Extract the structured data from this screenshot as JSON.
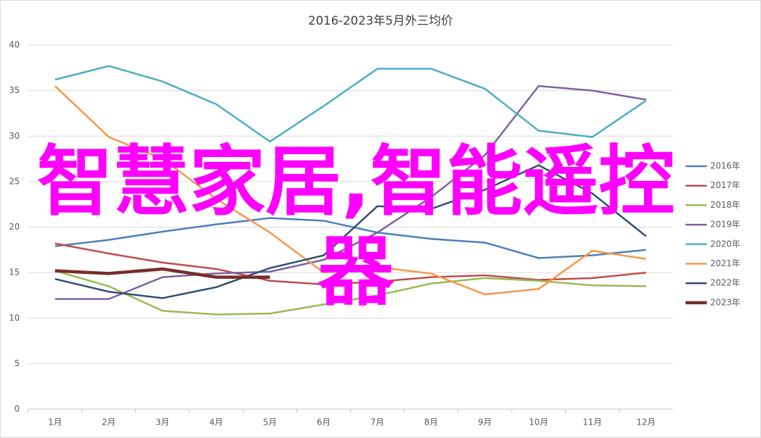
{
  "chart_data": {
    "type": "line",
    "title": "2016-2023年5月外三均价",
    "categories": [
      "1月",
      "2月",
      "3月",
      "4月",
      "5月",
      "6月",
      "7月",
      "8月",
      "9月",
      "10月",
      "11月",
      "12月"
    ],
    "ylim": [
      0,
      40
    ],
    "yticks": [
      0,
      5,
      10,
      15,
      20,
      25,
      30,
      35,
      40
    ],
    "grid": true,
    "legend": "right",
    "series": [
      {
        "name": "2016年",
        "color": "#4a7ebb",
        "values": [
          17.9,
          18.6,
          19.5,
          20.3,
          21.0,
          20.7,
          19.4,
          18.7,
          18.3,
          16.6,
          16.9,
          17.5
        ]
      },
      {
        "name": "2017年",
        "color": "#be4b48",
        "values": [
          18.2,
          17.1,
          16.1,
          15.4,
          14.1,
          13.7,
          14.0,
          14.5,
          14.7,
          14.2,
          14.4,
          15.0
        ]
      },
      {
        "name": "2018年",
        "color": "#98b954",
        "values": [
          15.2,
          13.5,
          10.8,
          10.4,
          10.5,
          11.5,
          12.5,
          13.8,
          14.4,
          14.1,
          13.6,
          13.5
        ]
      },
      {
        "name": "2019年",
        "color": "#7d60a0",
        "values": [
          12.1,
          12.1,
          14.5,
          14.9,
          15.1,
          16.4,
          19.4,
          23.3,
          27.9,
          35.5,
          35.0,
          34.0
        ]
      },
      {
        "name": "2020年",
        "color": "#4bacc6",
        "values": [
          36.2,
          37.7,
          36.0,
          33.5,
          29.4,
          33.3,
          37.4,
          37.4,
          35.2,
          30.6,
          29.9,
          33.9
        ]
      },
      {
        "name": "2021年",
        "color": "#f79646",
        "values": [
          35.5,
          29.9,
          27.5,
          23.1,
          19.4,
          15.0,
          15.6,
          14.9,
          12.6,
          13.2,
          17.4,
          16.5
        ]
      },
      {
        "name": "2022年",
        "color": "#2c4d75",
        "values": [
          14.3,
          12.9,
          12.2,
          13.4,
          15.5,
          16.9,
          22.3,
          22.0,
          24.1,
          26.8,
          23.7,
          19.0
        ]
      },
      {
        "name": "2023年",
        "color": "#772c2a",
        "values": [
          15.2,
          14.9,
          15.4,
          14.5,
          14.5,
          null,
          null,
          null,
          null,
          null,
          null,
          null
        ]
      }
    ]
  },
  "overlay_text": "智慧家居,智能遥控器"
}
